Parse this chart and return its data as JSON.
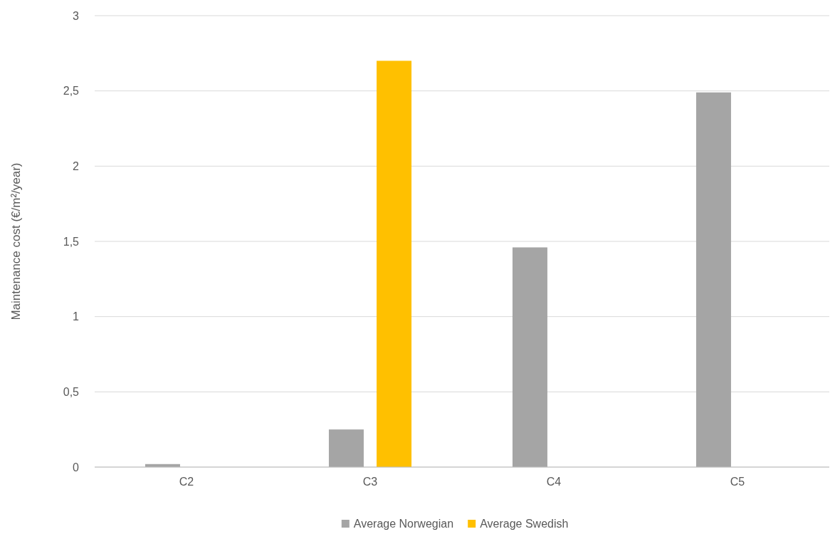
{
  "chart_data": {
    "type": "bar",
    "ylabel": "Maintenance cost (€/m²/year)",
    "categories": [
      "C2",
      "C3",
      "C4",
      "C5"
    ],
    "series": [
      {
        "name": "Average Norwegian",
        "color": "#a5a5a5",
        "values": [
          0.02,
          0.25,
          1.46,
          2.49
        ]
      },
      {
        "name": "Average Swedish",
        "color": "#ffc000",
        "values": [
          null,
          2.7,
          null,
          null
        ]
      }
    ],
    "ylim": [
      0,
      3
    ],
    "yticks": [
      0,
      {
        "value": 0.5,
        "label": "0,5"
      },
      1,
      {
        "value": 1.5,
        "label": "1,5"
      },
      2,
      {
        "value": 2.5,
        "label": "2,5"
      },
      3
    ],
    "grid": "y",
    "legend": "bottom"
  }
}
